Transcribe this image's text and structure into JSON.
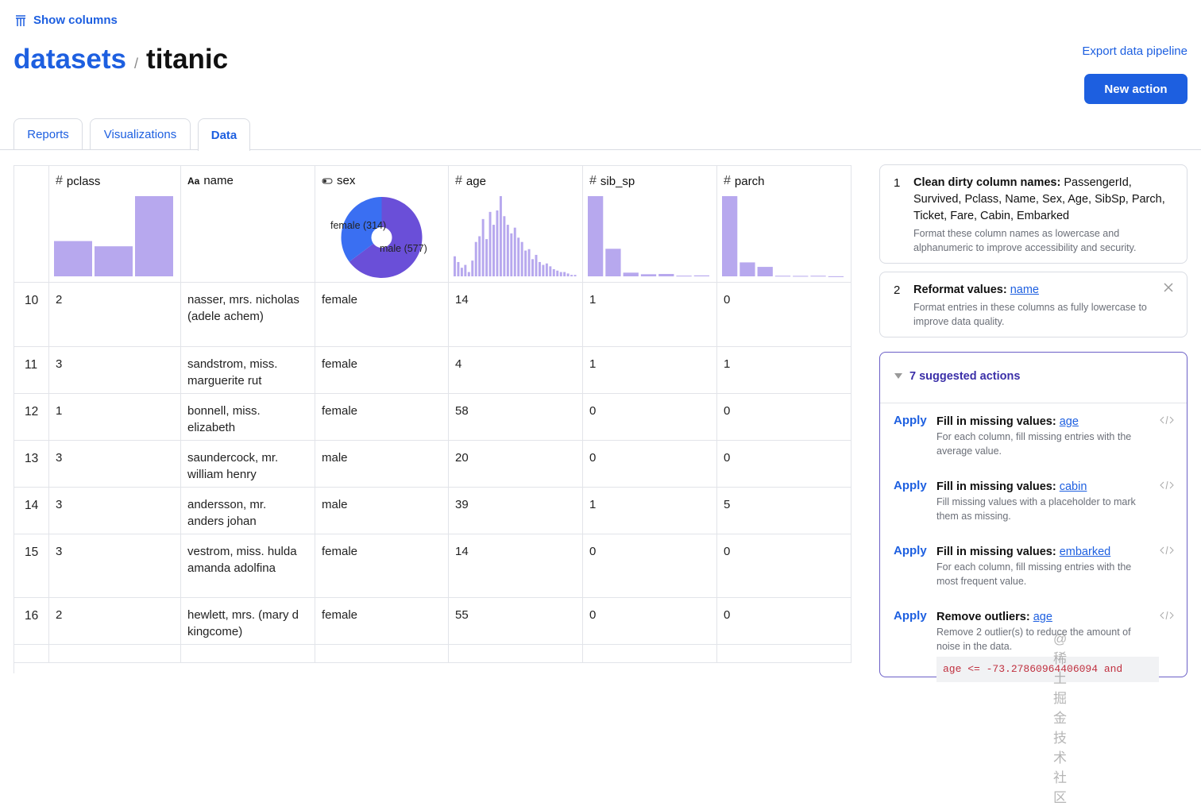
{
  "header": {
    "show_columns": "Show columns",
    "breadcrumb": [
      "datasets",
      "titanic"
    ],
    "separator": "/",
    "export": "Export data pipeline",
    "new_action": "New action"
  },
  "tabs": [
    "Reports",
    "Visualizations",
    "Data"
  ],
  "table": {
    "columns": [
      {
        "icon": "#",
        "name": "pclass",
        "chart": {
          "type": "bar",
          "values": [
            216,
            184,
            491
          ]
        }
      },
      {
        "icon": "Aa",
        "name": "name"
      },
      {
        "icon": "",
        "name": "sex",
        "chart": {
          "type": "pie",
          "categories": [
            "female",
            "male"
          ],
          "values": [
            314,
            577
          ],
          "value_labels": [
            "female (314)",
            "male (577)"
          ],
          "colors": [
            "#3a6ff2",
            "#6a4fd8"
          ]
        }
      },
      {
        "icon": "#",
        "name": "age",
        "chart": {
          "type": "bar",
          "values": [
            14,
            10,
            6,
            8,
            3,
            11,
            24,
            28,
            40,
            26,
            45,
            36,
            46,
            56,
            42,
            36,
            30,
            34,
            27,
            24,
            18,
            19,
            12,
            15,
            10,
            8,
            9,
            7,
            5,
            4,
            3,
            3,
            2,
            1,
            1
          ]
        }
      },
      {
        "icon": "#",
        "name": "sib_sp",
        "chart": {
          "type": "bar",
          "values": [
            608,
            209,
            28,
            16,
            18,
            5,
            7
          ]
        }
      },
      {
        "icon": "#",
        "name": "parch",
        "chart": {
          "type": "bar",
          "values": [
            678,
            118,
            80,
            5,
            4,
            5,
            1
          ]
        }
      }
    ],
    "rows": [
      [
        10,
        2,
        "nasser, mrs. nicholas (adele achem)",
        "female",
        14,
        1,
        0
      ],
      [
        11,
        3,
        "sandstrom, miss. marguerite rut",
        "female",
        4,
        1,
        1
      ],
      [
        12,
        1,
        "bonnell, miss. elizabeth",
        "female",
        58,
        0,
        0
      ],
      [
        13,
        3,
        "saundercock, mr. william henry",
        "male",
        20,
        0,
        0
      ],
      [
        14,
        3,
        "andersson, mr. anders johan",
        "male",
        39,
        1,
        5
      ],
      [
        15,
        3,
        "vestrom, miss. hulda amanda adolfina",
        "female",
        14,
        0,
        0
      ],
      [
        16,
        2,
        "hewlett, mrs. (mary d kingcome)",
        "female",
        55,
        0,
        0
      ]
    ]
  },
  "steps": [
    {
      "number": 1,
      "title": "Clean dirty column names:",
      "columns": "PassengerId, Survived, Pclass, Name, Sex, Age, SibSp, Parch, Ticket, Fare, Cabin, Embarked",
      "description": "Format these column names as lowercase and alphanumeric to improve accessibility and security."
    },
    {
      "number": 2,
      "title": "Reformat values:",
      "link": "name",
      "description": "Format entries in these columns as fully lowercase to improve data quality."
    }
  ],
  "suggestions": {
    "heading": "7 suggested actions",
    "items": [
      {
        "apply": "Apply",
        "title": "Fill in missing values:",
        "link": "age",
        "description": "For each column, fill missing entries with the average value."
      },
      {
        "apply": "Apply",
        "title": "Fill in missing values:",
        "link": "cabin",
        "description": "Fill missing values with a placeholder to mark them as missing."
      },
      {
        "apply": "Apply",
        "title": "Fill in missing values:",
        "link": "embarked",
        "description": "For each column, fill missing entries with the most frequent value."
      },
      {
        "apply": "Apply",
        "title": "Remove outliers:",
        "link": "age",
        "description": "Remove 2 outlier(s) to reduce the amount of noise in the data.",
        "code": "age <= -73.27860964406094 and"
      }
    ]
  },
  "watermark": "@稀土掘金技术社区"
}
